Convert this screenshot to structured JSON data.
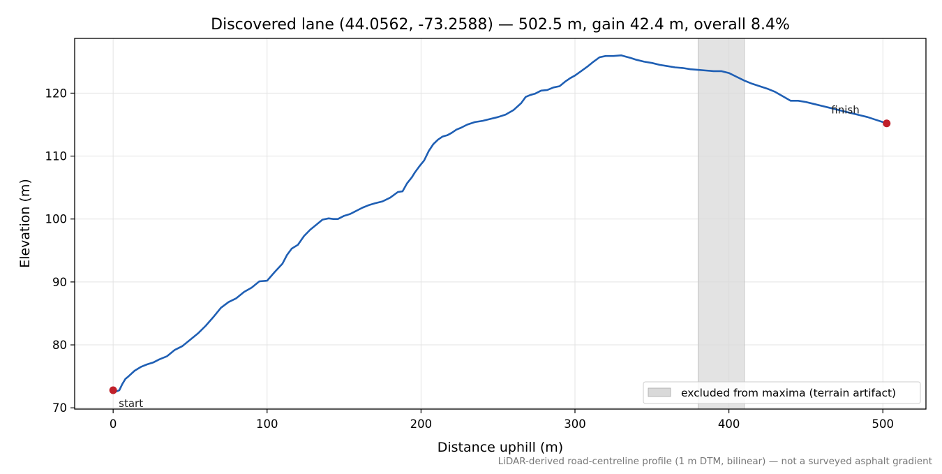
{
  "chart_data": {
    "type": "line",
    "title": "Discovered lane (44.0562, -73.2588) — 502.5 m, gain 42.4 m, overall 8.4%",
    "xlabel": "Distance uphill (m)",
    "ylabel": "Elevation (m)",
    "xlim": [
      -25,
      528
    ],
    "ylim": [
      69.8,
      128.7
    ],
    "xticks": [
      0,
      100,
      200,
      300,
      400,
      500
    ],
    "yticks": [
      70,
      80,
      90,
      100,
      110,
      120
    ],
    "grid": true,
    "line_color": "#1f5fb4",
    "marker_color": "#c0202a",
    "excluded_band": {
      "x": [
        380,
        410
      ],
      "color": "#d9d9d9"
    },
    "legend": {
      "position": "lower-right",
      "entries": [
        "excluded from maxima (terrain artifact)"
      ]
    },
    "annotations": [
      {
        "text": "start",
        "x": 0,
        "y": 72.8
      },
      {
        "text": "finish",
        "x": 502.5,
        "y": 115.2
      }
    ],
    "footnote": "LiDAR-derived road-centreline profile (1 m DTM, bilinear) — not a surveyed asphalt gradient",
    "series": [
      {
        "x": [
          0,
          2,
          4,
          6,
          8,
          10,
          14,
          18,
          22,
          26,
          30,
          35,
          40,
          45,
          50,
          55,
          60,
          65,
          70,
          75,
          80,
          85,
          90,
          95,
          100,
          105,
          110,
          113,
          116,
          120,
          124,
          128,
          132,
          136,
          140,
          143,
          146,
          150,
          154,
          158,
          162,
          166,
          170,
          175,
          180,
          185,
          188,
          191,
          194,
          196,
          199,
          202,
          205,
          208,
          211,
          214,
          217,
          220,
          223,
          226,
          230,
          235,
          240,
          245,
          250,
          255,
          260,
          265,
          268,
          271,
          274,
          278,
          282,
          286,
          290,
          294,
          297,
          300,
          304,
          308,
          312,
          316,
          320,
          325,
          330,
          333,
          336,
          340,
          345,
          350,
          355,
          360,
          365,
          370,
          375,
          380,
          385,
          390,
          395,
          400,
          405,
          410,
          415,
          420,
          425,
          430,
          435,
          440,
          445,
          450,
          455,
          460,
          465,
          470,
          475,
          480,
          485,
          490,
          495,
          500,
          502.5
        ],
        "y": [
          72.8,
          72.6,
          72.8,
          73.8,
          74.6,
          75.0,
          75.9,
          76.5,
          76.9,
          77.2,
          77.7,
          78.2,
          79.2,
          79.8,
          80.8,
          81.8,
          83.0,
          84.4,
          85.9,
          86.8,
          87.4,
          88.4,
          89.1,
          90.1,
          90.2,
          91.6,
          92.9,
          94.3,
          95.3,
          95.9,
          97.3,
          98.3,
          99.1,
          99.9,
          100.1,
          100.0,
          100.0,
          100.5,
          100.8,
          101.3,
          101.8,
          102.2,
          102.5,
          102.8,
          103.4,
          104.3,
          104.4,
          105.7,
          106.6,
          107.4,
          108.4,
          109.3,
          110.8,
          111.9,
          112.6,
          113.1,
          113.3,
          113.7,
          114.2,
          114.5,
          115.0,
          115.4,
          115.6,
          115.9,
          116.2,
          116.6,
          117.3,
          118.4,
          119.4,
          119.7,
          119.9,
          120.4,
          120.5,
          120.9,
          121.1,
          121.9,
          122.4,
          122.8,
          123.5,
          124.2,
          125.0,
          125.7,
          125.9,
          125.9,
          126.0,
          125.8,
          125.6,
          125.3,
          125.0,
          124.8,
          124.5,
          124.3,
          124.1,
          124.0,
          123.8,
          123.7,
          123.6,
          123.5,
          123.5,
          123.2,
          122.6,
          122.0,
          121.5,
          121.1,
          120.7,
          120.2,
          119.5,
          118.8,
          118.8,
          118.6,
          118.3,
          118.0,
          117.7,
          117.4,
          117.1,
          116.8,
          116.5,
          116.2,
          115.8,
          115.4,
          115.2
        ]
      }
    ]
  }
}
